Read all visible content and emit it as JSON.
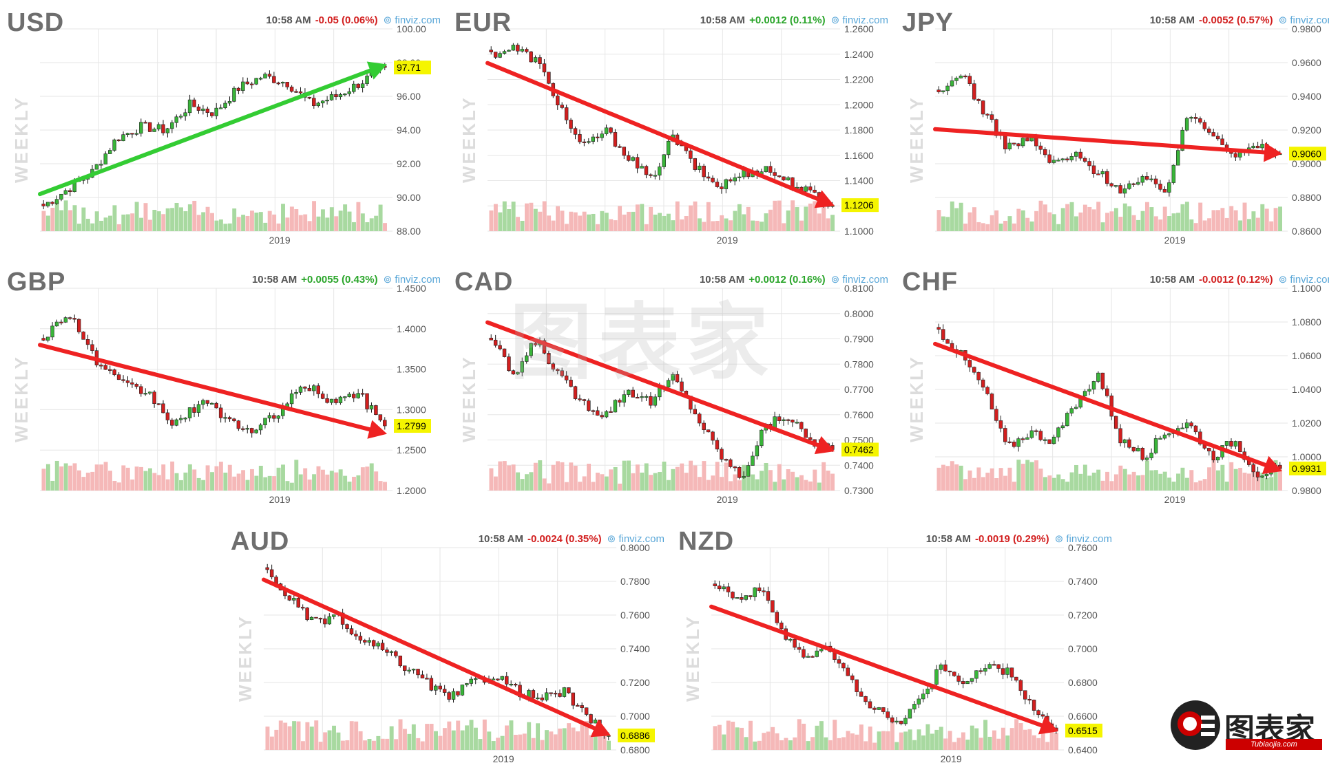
{
  "chart_data": [
    {
      "type": "candlestick",
      "title": "USD",
      "side_label": "WEEKLY",
      "time": "10:58 AM",
      "change": "-0.05 (0.06%)",
      "change_dir": "down",
      "source": "finviz.com",
      "x_tick": "2019",
      "ylim": [
        88,
        100
      ],
      "y_ticks": [
        "100.00",
        "98.00",
        "96.00",
        "94.00",
        "92.00",
        "90.00",
        "88.00"
      ],
      "last_value": "97.71",
      "last": 97.71,
      "trend": {
        "from": 90.2,
        "to": 97.9,
        "color": "#33cc33"
      },
      "path": [
        89.5,
        90.5,
        91.5,
        93.5,
        94.2,
        94.0,
        95.5,
        95.0,
        96.5,
        97.2,
        96.8,
        95.5,
        96.0,
        96.8,
        97.71
      ]
    },
    {
      "type": "candlestick",
      "title": "EUR",
      "side_label": "WEEKLY",
      "time": "10:58 AM",
      "change": "+0.0012 (0.11%)",
      "change_dir": "up",
      "source": "finviz.com",
      "x_tick": "2019",
      "ylim": [
        1.1,
        1.26
      ],
      "y_ticks": [
        "1.2600",
        "1.2400",
        "1.2200",
        "1.2000",
        "1.1800",
        "1.1600",
        "1.1400",
        "1.1200",
        "1.1000"
      ],
      "last_value": "1.1206",
      "last": 1.1206,
      "trend": {
        "from": 1.233,
        "to": 1.12,
        "color": "#ee2222"
      },
      "path": [
        1.24,
        1.245,
        1.235,
        1.2,
        1.165,
        1.18,
        1.16,
        1.14,
        1.175,
        1.15,
        1.135,
        1.145,
        1.15,
        1.14,
        1.13,
        1.1206
      ]
    },
    {
      "type": "candlestick",
      "title": "JPY",
      "side_label": "WEEKLY",
      "time": "10:58 AM",
      "change": "-0.0052 (0.57%)",
      "change_dir": "down",
      "source": "finviz.com",
      "x_tick": "2019",
      "ylim": [
        0.86,
        0.98
      ],
      "y_ticks": [
        "0.9800",
        "0.9600",
        "0.9400",
        "0.9200",
        "0.9000",
        "0.8800",
        "0.8600"
      ],
      "last_value": "0.9060",
      "last": 0.906,
      "trend": {
        "from": 0.9205,
        "to": 0.906,
        "color": "#ee2222"
      },
      "path": [
        0.94,
        0.955,
        0.93,
        0.91,
        0.915,
        0.9,
        0.905,
        0.895,
        0.885,
        0.89,
        0.885,
        0.93,
        0.92,
        0.905,
        0.91,
        0.906
      ]
    },
    {
      "type": "candlestick",
      "title": "GBP",
      "side_label": "WEEKLY",
      "time": "10:58 AM",
      "change": "+0.0055 (0.43%)",
      "change_dir": "up",
      "source": "finviz.com",
      "x_tick": "2019",
      "ylim": [
        1.2,
        1.45
      ],
      "y_ticks": [
        "1.4500",
        "1.4000",
        "1.3500",
        "1.3000",
        "1.2500",
        "1.2000"
      ],
      "last_value": "1.2799",
      "last": 1.2799,
      "trend": {
        "from": 1.38,
        "to": 1.27,
        "color": "#ee2222"
      },
      "path": [
        1.39,
        1.42,
        1.36,
        1.33,
        1.32,
        1.28,
        1.31,
        1.29,
        1.27,
        1.3,
        1.33,
        1.31,
        1.32,
        1.2799
      ]
    },
    {
      "type": "candlestick",
      "title": "CAD",
      "side_label": "WEEKLY",
      "time": "10:58 AM",
      "change": "+0.0012 (0.16%)",
      "change_dir": "up",
      "source": "finviz.com",
      "x_tick": "2019",
      "ylim": [
        0.73,
        0.81
      ],
      "y_ticks": [
        "0.8100",
        "0.8000",
        "0.7900",
        "0.7800",
        "0.7700",
        "0.7600",
        "0.7500",
        "0.7400",
        "0.7300"
      ],
      "last_value": "0.7462",
      "last": 0.7462,
      "trend": {
        "from": 0.7965,
        "to": 0.7455,
        "color": "#ee2222"
      },
      "path": [
        0.79,
        0.775,
        0.79,
        0.775,
        0.765,
        0.76,
        0.77,
        0.765,
        0.775,
        0.76,
        0.745,
        0.735,
        0.755,
        0.76,
        0.75,
        0.7462
      ]
    },
    {
      "type": "candlestick",
      "title": "CHF",
      "side_label": "WEEKLY",
      "time": "10:58 AM",
      "change": "-0.0012 (0.12%)",
      "change_dir": "down",
      "source": "finviz.com",
      "x_tick": "2019",
      "ylim": [
        0.98,
        1.1
      ],
      "y_ticks": [
        "1.1000",
        "1.0800",
        "1.0600",
        "1.0400",
        "1.0200",
        "1.0000",
        "0.9800"
      ],
      "last_value": "0.9931",
      "last": 0.9931,
      "trend": {
        "from": 1.067,
        "to": 0.9915,
        "color": "#ee2222"
      },
      "path": [
        1.075,
        1.06,
        1.04,
        1.005,
        1.015,
        1.01,
        1.03,
        1.05,
        1.01,
        1.0,
        1.015,
        1.02,
        1.0,
        1.01,
        0.99,
        0.9931
      ]
    },
    {
      "type": "candlestick",
      "title": "AUD",
      "side_label": "WEEKLY",
      "time": "10:58 AM",
      "change": "-0.0024 (0.35%)",
      "change_dir": "down",
      "source": "finviz.com",
      "x_tick": "2019",
      "ylim": [
        0.68,
        0.8
      ],
      "y_ticks": [
        "0.8000",
        "0.7800",
        "0.7600",
        "0.7400",
        "0.7200",
        "0.7000",
        "0.6800"
      ],
      "last_value": "0.6886",
      "last": 0.6886,
      "trend": {
        "from": 0.781,
        "to": 0.6885,
        "color": "#ee2222"
      },
      "path": [
        0.785,
        0.77,
        0.755,
        0.76,
        0.745,
        0.74,
        0.73,
        0.72,
        0.71,
        0.72,
        0.725,
        0.715,
        0.71,
        0.715,
        0.7,
        0.6886
      ]
    },
    {
      "type": "candlestick",
      "title": "NZD",
      "side_label": "WEEKLY",
      "time": "10:58 AM",
      "change": "-0.0019 (0.29%)",
      "change_dir": "down",
      "source": "finviz.com",
      "x_tick": "2019",
      "ylim": [
        0.64,
        0.76
      ],
      "y_ticks": [
        "0.7600",
        "0.7400",
        "0.7200",
        "0.7000",
        "0.6800",
        "0.6600",
        "0.6400"
      ],
      "last_value": "0.6515",
      "last": 0.6515,
      "trend": {
        "from": 0.725,
        "to": 0.651,
        "color": "#ee2222"
      },
      "path": [
        0.74,
        0.73,
        0.735,
        0.71,
        0.695,
        0.7,
        0.68,
        0.665,
        0.655,
        0.67,
        0.69,
        0.68,
        0.69,
        0.685,
        0.665,
        0.6515
      ]
    }
  ],
  "watermark": "图表家",
  "logo": {
    "text": "图表家",
    "sub": "Tubiaojia.com"
  },
  "colors": {
    "up": "#39b539",
    "down": "#d21f1f",
    "vol_up": "#a8d9a0",
    "vol_down": "#f5b8b8",
    "grid": "#e6e6e6",
    "axis_text": "#555555",
    "price_tag": "#f5f500"
  }
}
